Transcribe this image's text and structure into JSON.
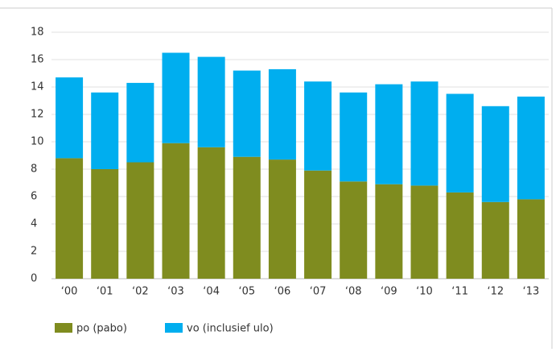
{
  "chart_data": {
    "type": "stacked_bar",
    "categories": [
      "‘00",
      "‘01",
      "‘02",
      "‘03",
      "‘04",
      "‘05",
      "‘06",
      "‘07",
      "‘08",
      "‘09",
      "‘10",
      "‘11",
      "‘12",
      "‘13"
    ],
    "series": [
      {
        "name": "po (pabo)",
        "color": "#7f8c1f",
        "values": [
          8.8,
          8.0,
          8.5,
          9.9,
          9.6,
          8.9,
          8.7,
          7.9,
          7.1,
          6.9,
          6.8,
          6.3,
          5.6,
          5.8
        ]
      },
      {
        "name": "vo (inclusief ulo)",
        "color": "#00aeef",
        "values": [
          5.9,
          5.6,
          5.8,
          6.6,
          6.6,
          6.3,
          6.6,
          6.5,
          6.5,
          7.3,
          7.6,
          7.2,
          7.0,
          7.5
        ]
      }
    ],
    "ylim": [
      0,
      18
    ],
    "yticks": [
      0,
      2,
      4,
      6,
      8,
      10,
      12,
      14,
      16,
      18
    ],
    "grid": true
  }
}
